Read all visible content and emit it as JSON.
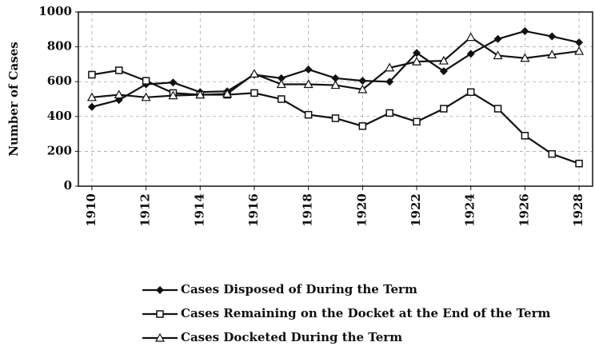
{
  "chart_data": {
    "type": "line",
    "y_label": "Number of Cases",
    "x": [
      1910,
      1911,
      1912,
      1913,
      1914,
      1915,
      1916,
      1917,
      1918,
      1919,
      1920,
      1921,
      1922,
      1923,
      1924,
      1925,
      1926,
      1927,
      1928
    ],
    "xlim": [
      1909.5,
      1928.5
    ],
    "xticks": [
      1910,
      1912,
      1914,
      1916,
      1918,
      1920,
      1922,
      1924,
      1926,
      1928
    ],
    "ylim": [
      0,
      1000
    ],
    "yticks": [
      0,
      200,
      400,
      600,
      800,
      1000
    ],
    "grid": true,
    "legend": "bottom",
    "series": [
      {
        "name": "Cases Disposed of During the Term",
        "color": "#111111",
        "marker": "diamond",
        "values": [
          455,
          495,
          585,
          595,
          540,
          545,
          640,
          620,
          670,
          620,
          605,
          600,
          765,
          660,
          760,
          845,
          890,
          860,
          825
        ]
      },
      {
        "name": "Cases Remaining on the Docket at the End of the Term",
        "color": "#111111",
        "marker": "square",
        "values": [
          640,
          665,
          605,
          535,
          525,
          525,
          535,
          500,
          410,
          390,
          345,
          420,
          370,
          445,
          540,
          445,
          290,
          185,
          130
        ]
      },
      {
        "name": "Cases Docketed During the Term",
        "color": "#111111",
        "marker": "triangle",
        "values": [
          510,
          525,
          510,
          520,
          525,
          530,
          645,
          585,
          585,
          580,
          555,
          680,
          715,
          720,
          855,
          750,
          735,
          755,
          775
        ]
      }
    ]
  }
}
